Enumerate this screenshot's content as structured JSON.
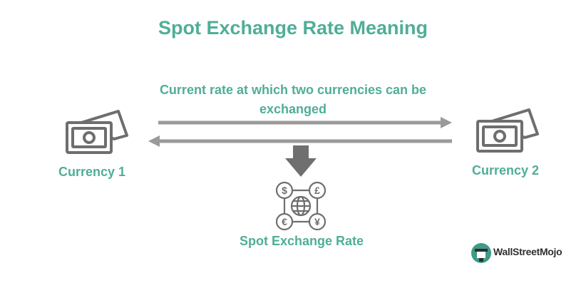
{
  "title": "Spot Exchange Rate Meaning",
  "description": "Current rate at which two currencies can be exchanged",
  "left_node": {
    "label": "Currency 1",
    "icon": "banknote-icon"
  },
  "right_node": {
    "label": "Currency 2",
    "icon": "banknote-icon"
  },
  "result_node": {
    "label": "Spot Exchange Rate",
    "icon": "currency-exchange-globe-icon",
    "symbols": [
      "$",
      "£",
      "€",
      "¥"
    ]
  },
  "brand": {
    "name": "WallStreetMojo",
    "icon": "wallstreetmojo-logo-icon"
  },
  "colors": {
    "accent": "#4fae97",
    "icon": "#6e6e6e",
    "arrow": "#9a9a9a",
    "down_arrow": "#6f6f6f"
  }
}
